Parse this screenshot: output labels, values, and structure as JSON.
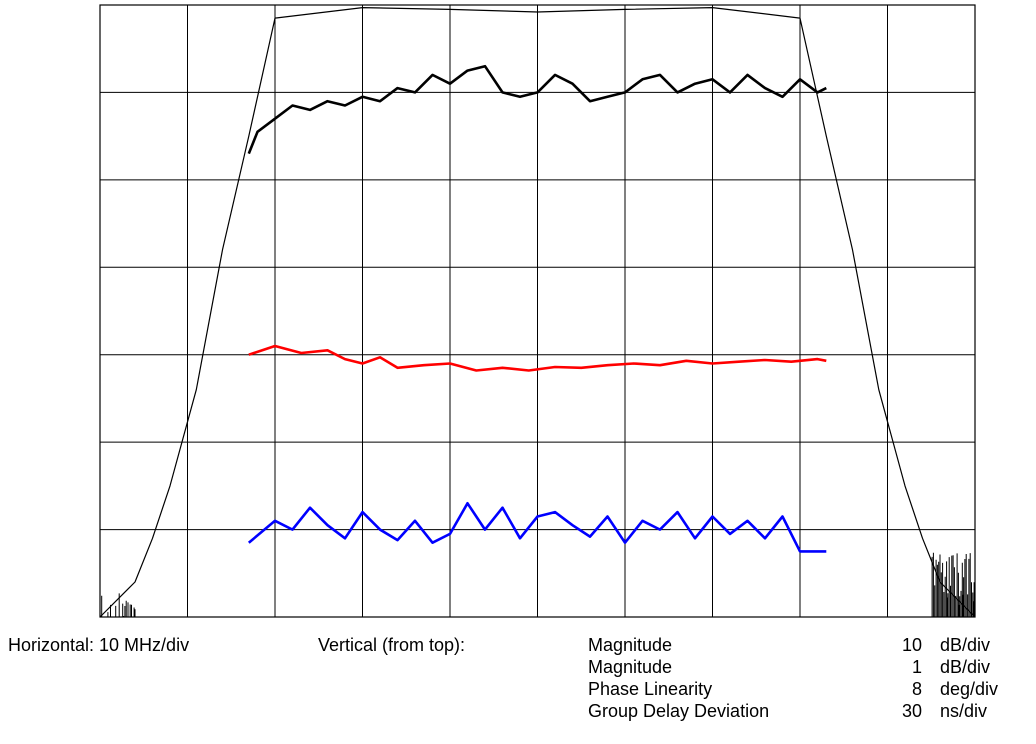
{
  "chart_data": {
    "type": "line",
    "title": "",
    "xlabel": "",
    "ylabel": "",
    "grid": true,
    "x_divisions": 10,
    "y_divisions": 7,
    "horizontal_scale": "Horizontal: 10 MHz/div",
    "vertical_heading": "Vertical (from top):",
    "scales": [
      {
        "name": "Magnitude",
        "value": "10",
        "unit": "dB/div"
      },
      {
        "name": "Magnitude",
        "value": "1",
        "unit": "dB/div"
      },
      {
        "name": "Phase Linearity",
        "value": "8",
        "unit": "deg/div"
      },
      {
        "name": "Group Delay Deviation",
        "value": "30",
        "unit": "ns/div"
      }
    ],
    "series": [
      {
        "color": "#000000",
        "x": [
          -5,
          -4.6,
          -4.4,
          -4.2,
          -3.9,
          -3.6,
          -3.3,
          -3.0,
          -2.0,
          -1.0,
          0,
          1.0,
          2.0,
          3.0,
          3.3,
          3.6,
          3.9,
          4.2,
          4.4,
          4.6,
          5
        ],
        "y": [
          0.0,
          0.4,
          0.9,
          1.5,
          2.6,
          4.2,
          5.5,
          6.85,
          6.97,
          6.95,
          6.92,
          6.95,
          6.97,
          6.85,
          5.5,
          4.2,
          2.6,
          1.5,
          0.9,
          0.4,
          0.0
        ]
      },
      {
        "color": "#000000",
        "x": [
          -3.3,
          -3.2,
          -3.0,
          -2.8,
          -2.6,
          -2.4,
          -2.2,
          -2.0,
          -1.8,
          -1.6,
          -1.4,
          -1.2,
          -1.0,
          -0.8,
          -0.6,
          -0.4,
          -0.2,
          0.0,
          0.2,
          0.4,
          0.6,
          0.8,
          1.0,
          1.2,
          1.4,
          1.6,
          1.8,
          2.0,
          2.2,
          2.4,
          2.6,
          2.8,
          3.0,
          3.2,
          3.3
        ],
        "y": [
          5.3,
          5.55,
          5.7,
          5.85,
          5.8,
          5.9,
          5.85,
          5.95,
          5.9,
          6.05,
          6.0,
          6.2,
          6.1,
          6.25,
          6.3,
          6.0,
          5.95,
          6.0,
          6.2,
          6.1,
          5.9,
          5.95,
          6.0,
          6.15,
          6.2,
          6.0,
          6.1,
          6.15,
          6.0,
          6.2,
          6.05,
          5.95,
          6.15,
          6.0,
          6.05
        ]
      },
      {
        "color": "#ff0000",
        "x": [
          -3.3,
          -3.0,
          -2.7,
          -2.4,
          -2.2,
          -2.0,
          -1.8,
          -1.6,
          -1.3,
          -1.0,
          -0.7,
          -0.4,
          -0.1,
          0.2,
          0.5,
          0.8,
          1.1,
          1.4,
          1.7,
          2.0,
          2.3,
          2.6,
          2.9,
          3.2,
          3.3
        ],
        "y": [
          3.0,
          3.1,
          3.02,
          3.05,
          2.95,
          2.9,
          2.97,
          2.85,
          2.88,
          2.9,
          2.82,
          2.85,
          2.82,
          2.86,
          2.85,
          2.88,
          2.9,
          2.88,
          2.93,
          2.9,
          2.92,
          2.94,
          2.92,
          2.95,
          2.93
        ]
      },
      {
        "color": "#0000ff",
        "x": [
          -3.3,
          -3.0,
          -2.8,
          -2.6,
          -2.4,
          -2.2,
          -2.0,
          -1.8,
          -1.6,
          -1.4,
          -1.2,
          -1.0,
          -0.8,
          -0.6,
          -0.4,
          -0.2,
          0.0,
          0.2,
          0.4,
          0.6,
          0.8,
          1.0,
          1.2,
          1.4,
          1.6,
          1.8,
          2.0,
          2.2,
          2.4,
          2.6,
          2.8,
          3.0,
          3.3
        ],
        "y": [
          0.85,
          1.1,
          1.0,
          1.25,
          1.05,
          0.9,
          1.2,
          1.0,
          0.88,
          1.1,
          0.85,
          0.95,
          1.3,
          1.0,
          1.25,
          0.9,
          1.15,
          1.2,
          1.05,
          0.92,
          1.15,
          0.85,
          1.1,
          1.0,
          1.2,
          0.9,
          1.15,
          0.95,
          1.1,
          0.9,
          1.15,
          0.75,
          0.75
        ]
      }
    ],
    "noise_floor": {
      "color": "#000000"
    }
  }
}
